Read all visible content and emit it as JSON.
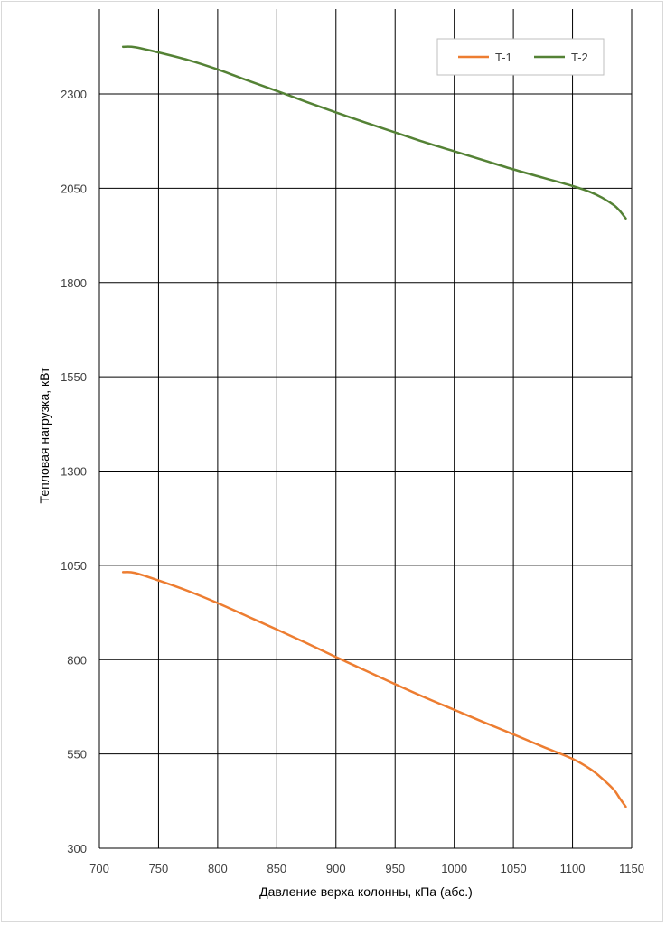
{
  "chart_data": {
    "type": "line",
    "title": "",
    "xlabel": "Давление верха колонны, кПа (абс.)",
    "ylabel": "Тепловая нагрузка, кВт",
    "xlim": [
      700,
      1150
    ],
    "ylim": [
      300,
      2300
    ],
    "x_ticks": [
      700,
      750,
      800,
      850,
      900,
      950,
      1000,
      1050,
      1100,
      1150
    ],
    "y_ticks": [
      300,
      550,
      800,
      1050,
      1300,
      1550,
      1800,
      2050,
      2300
    ],
    "grid": true,
    "legend_position": "top-right",
    "series": [
      {
        "name": "T-1",
        "color": "#ed7d31",
        "x": [
          720,
          730,
          750,
          775,
          800,
          825,
          850,
          875,
          900,
          925,
          950,
          975,
          1000,
          1025,
          1050,
          1075,
          1100,
          1115,
          1125,
          1135,
          1140,
          1145
        ],
        "y": [
          1032,
          1030,
          1010,
          982,
          950,
          915,
          880,
          844,
          807,
          771,
          735,
          700,
          667,
          634,
          602,
          569,
          537,
          510,
          485,
          455,
          432,
          410
        ]
      },
      {
        "name": "T-2",
        "color": "#548235",
        "x": [
          720,
          730,
          750,
          775,
          800,
          825,
          850,
          875,
          900,
          925,
          950,
          975,
          1000,
          1025,
          1050,
          1075,
          1100,
          1115,
          1125,
          1135,
          1140,
          1145
        ],
        "y": [
          2425,
          2424,
          2410,
          2390,
          2365,
          2336,
          2308,
          2279,
          2251,
          2224,
          2198,
          2172,
          2148,
          2124,
          2100,
          2078,
          2056,
          2040,
          2025,
          2005,
          1990,
          1970
        ]
      }
    ]
  }
}
